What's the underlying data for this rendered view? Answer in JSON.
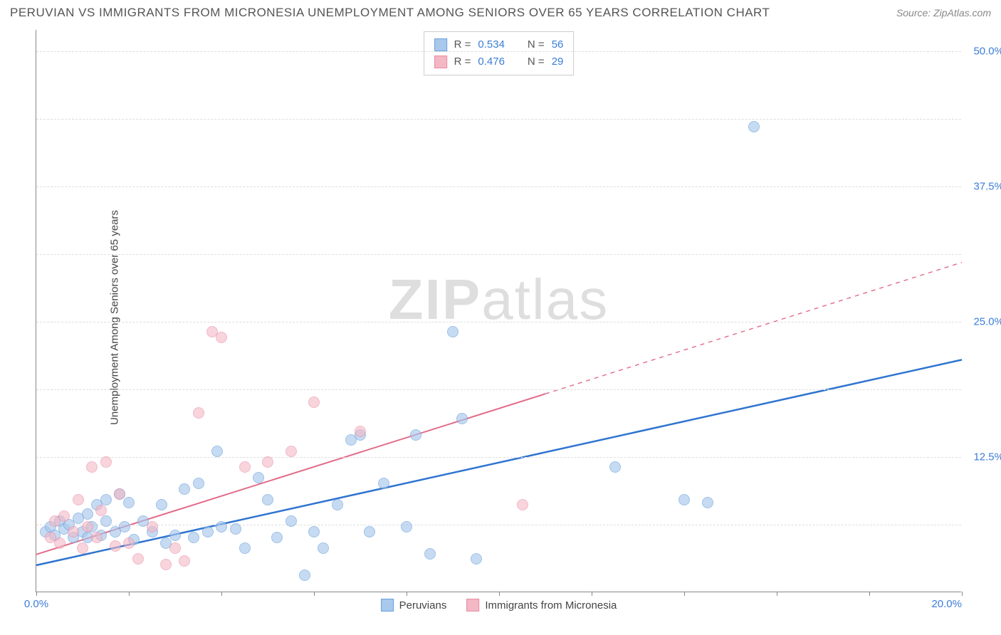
{
  "title": "PERUVIAN VS IMMIGRANTS FROM MICRONESIA UNEMPLOYMENT AMONG SENIORS OVER 65 YEARS CORRELATION CHART",
  "source_prefix": "Source: ",
  "source_name": "ZipAtlas.com",
  "y_axis_label": "Unemployment Among Seniors over 65 years",
  "watermark": "ZIPatlas",
  "chart": {
    "type": "scatter-with-regression",
    "xlim": [
      0,
      20
    ],
    "ylim": [
      0,
      52
    ],
    "x_ticks": [
      0,
      2,
      4,
      6,
      8,
      10,
      12,
      14,
      16,
      18,
      20
    ],
    "x_tick_labels": {
      "0": "0.0%",
      "20": "20.0%"
    },
    "y_gridlines": [
      6.25,
      12.5,
      18.75,
      25,
      31.25,
      37.5,
      43.75,
      50
    ],
    "y_tick_labels": {
      "12.5": "12.5%",
      "25": "25.0%",
      "37.5": "37.5%",
      "50": "50.0%"
    },
    "background_color": "#ffffff",
    "grid_color": "#dddddd",
    "axis_color": "#888888",
    "tick_label_color": "#3b7dd8",
    "dot_radius": 8,
    "series": [
      {
        "name": "Peruvians",
        "legend_label": "Peruvians",
        "fill_color": "#a8c8ec",
        "stroke_color": "#6aa0de",
        "fill_opacity": 0.65,
        "stat_R": "0.534",
        "stat_N": "56",
        "regression": {
          "x1": 0,
          "y1": 2.5,
          "x2": 20,
          "y2": 21.5,
          "solid_until_x": 20,
          "color": "#2e74d0",
          "width": 2.5
        },
        "points": [
          [
            0.2,
            5.5
          ],
          [
            0.3,
            6.0
          ],
          [
            0.4,
            5.2
          ],
          [
            0.5,
            6.5
          ],
          [
            0.6,
            5.8
          ],
          [
            0.7,
            6.2
          ],
          [
            0.8,
            5.0
          ],
          [
            0.9,
            6.8
          ],
          [
            1.0,
            5.5
          ],
          [
            1.1,
            7.2
          ],
          [
            1.1,
            5.0
          ],
          [
            1.2,
            6.0
          ],
          [
            1.3,
            8.0
          ],
          [
            1.4,
            5.2
          ],
          [
            1.5,
            6.5
          ],
          [
            1.5,
            8.5
          ],
          [
            1.7,
            5.5
          ],
          [
            1.8,
            9.0
          ],
          [
            1.9,
            6.0
          ],
          [
            2.0,
            8.2
          ],
          [
            2.1,
            4.8
          ],
          [
            2.3,
            6.5
          ],
          [
            2.5,
            5.5
          ],
          [
            2.7,
            8.0
          ],
          [
            2.8,
            4.5
          ],
          [
            3.0,
            5.2
          ],
          [
            3.2,
            9.5
          ],
          [
            3.4,
            5.0
          ],
          [
            3.5,
            10.0
          ],
          [
            3.7,
            5.5
          ],
          [
            3.9,
            13.0
          ],
          [
            4.0,
            6.0
          ],
          [
            4.3,
            5.8
          ],
          [
            4.5,
            4.0
          ],
          [
            4.8,
            10.5
          ],
          [
            5.0,
            8.5
          ],
          [
            5.2,
            5.0
          ],
          [
            5.5,
            6.5
          ],
          [
            5.8,
            1.5
          ],
          [
            6.0,
            5.5
          ],
          [
            6.2,
            4.0
          ],
          [
            6.5,
            8.0
          ],
          [
            6.8,
            14.0
          ],
          [
            7.0,
            14.5
          ],
          [
            7.2,
            5.5
          ],
          [
            7.5,
            10.0
          ],
          [
            8.0,
            6.0
          ],
          [
            8.2,
            14.5
          ],
          [
            8.5,
            3.5
          ],
          [
            9.0,
            24.0
          ],
          [
            9.2,
            16.0
          ],
          [
            9.5,
            3.0
          ],
          [
            12.5,
            11.5
          ],
          [
            14.0,
            8.5
          ],
          [
            14.5,
            8.2
          ],
          [
            15.5,
            43.0
          ]
        ]
      },
      {
        "name": "Immigrants from Micronesia",
        "legend_label": "Immigrants from Micronesia",
        "fill_color": "#f4b8c5",
        "stroke_color": "#e88ba3",
        "fill_opacity": 0.6,
        "stat_R": "0.476",
        "stat_N": "29",
        "regression": {
          "x1": 0,
          "y1": 3.5,
          "x2": 20,
          "y2": 30.5,
          "solid_until_x": 11,
          "color": "#e26b88",
          "width": 2
        },
        "points": [
          [
            0.3,
            5.0
          ],
          [
            0.4,
            6.5
          ],
          [
            0.5,
            4.5
          ],
          [
            0.6,
            7.0
          ],
          [
            0.8,
            5.5
          ],
          [
            0.9,
            8.5
          ],
          [
            1.0,
            4.0
          ],
          [
            1.1,
            6.0
          ],
          [
            1.2,
            11.5
          ],
          [
            1.3,
            5.0
          ],
          [
            1.4,
            7.5
          ],
          [
            1.5,
            12.0
          ],
          [
            1.7,
            4.2
          ],
          [
            1.8,
            9.0
          ],
          [
            2.0,
            4.5
          ],
          [
            2.2,
            3.0
          ],
          [
            2.5,
            6.0
          ],
          [
            2.8,
            2.5
          ],
          [
            3.0,
            4.0
          ],
          [
            3.2,
            2.8
          ],
          [
            3.5,
            16.5
          ],
          [
            3.8,
            24.0
          ],
          [
            4.0,
            23.5
          ],
          [
            4.5,
            11.5
          ],
          [
            5.0,
            12.0
          ],
          [
            5.5,
            13.0
          ],
          [
            6.0,
            17.5
          ],
          [
            7.0,
            14.8
          ],
          [
            10.5,
            8.0
          ]
        ]
      }
    ]
  },
  "stat_legend": {
    "R_label": "R =",
    "N_label": "N ="
  }
}
